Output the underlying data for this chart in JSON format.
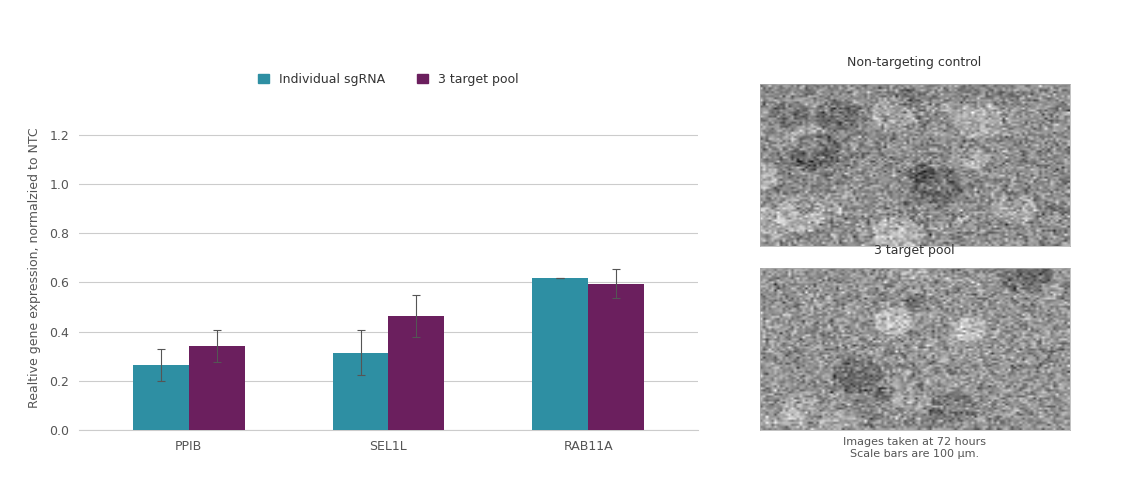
{
  "groups": [
    "PPIB",
    "SEL1L",
    "RAB11A"
  ],
  "individual_values": [
    0.265,
    0.315,
    0.62
  ],
  "pool_values": [
    0.34,
    0.465,
    0.595
  ],
  "individual_errors": [
    0.065,
    0.09,
    0.0
  ],
  "pool_errors": [
    0.065,
    0.085,
    0.06
  ],
  "individual_color": "#2e8fa3",
  "pool_color": "#6b1f5e",
  "ylabel": "Realtive gene expression, normalzied to NTC",
  "ylim": [
    0,
    1.32
  ],
  "yticks": [
    0.0,
    0.2,
    0.4,
    0.6,
    0.8,
    1.0,
    1.2
  ],
  "legend_individual": "Individual sgRNA",
  "legend_pool": "3 target pool",
  "bar_width": 0.28,
  "background_color": "#ffffff",
  "grid_color": "#cccccc",
  "tick_color": "#555555",
  "label_fontsize": 9,
  "tick_fontsize": 9,
  "legend_fontsize": 9,
  "ntc_title": "Non-targeting control",
  "pool_title": "3 target pool",
  "footnote": "Images taken at 72 hours\nScale bars are 100 μm."
}
